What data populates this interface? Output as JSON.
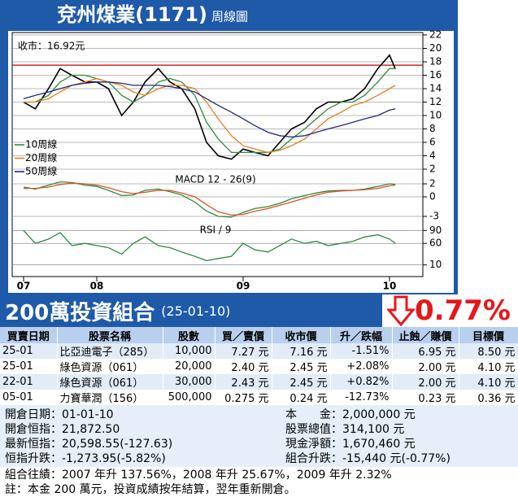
{
  "header": {
    "title": "兗州煤業(1171)",
    "subtitle": "周線圖"
  },
  "chart_data": [
    {
      "type": "line",
      "title": "收市：16.92元",
      "x": [
        2007.5,
        2007.58,
        2007.67,
        2007.75,
        2007.83,
        2007.92,
        2008.0,
        2008.08,
        2008.17,
        2008.25,
        2008.33,
        2008.42,
        2008.5,
        2008.58,
        2008.67,
        2008.75,
        2008.83,
        2008.92,
        2009.0,
        2009.08,
        2009.17,
        2009.25,
        2009.33,
        2009.42,
        2009.5,
        2009.58,
        2009.67,
        2009.75,
        2009.83,
        2009.92,
        2010.0,
        2010.04
      ],
      "xlim": [
        2007.45,
        2010.2
      ],
      "ylim": [
        2,
        22
      ],
      "yticks": [
        2,
        4,
        6,
        8,
        10,
        12,
        14,
        16,
        18,
        20,
        22
      ],
      "grid": true,
      "hline": 17.5,
      "hline_color": "#c00000",
      "series": [
        {
          "color": "#000000",
          "values": [
            12,
            11,
            14,
            17,
            16,
            15,
            15,
            14,
            10,
            12,
            15,
            17,
            15,
            14,
            11,
            6,
            4,
            3.5,
            5,
            4.5,
            4,
            6,
            8,
            9,
            11,
            12,
            12,
            12.5,
            14,
            17,
            19,
            16.92
          ]
        },
        {
          "name": "10周線",
          "color": "#2e8b3a",
          "values": [
            12,
            12,
            13,
            15,
            16,
            16,
            15.5,
            15,
            13,
            12,
            13,
            15,
            15.5,
            15,
            13,
            9,
            6.5,
            4.5,
            4.5,
            4.5,
            4.5,
            5,
            6.5,
            8,
            9.5,
            11,
            12,
            12,
            13,
            15,
            17,
            17
          ]
        },
        {
          "name": "20周線",
          "color": "#e87d1e",
          "values": [
            12,
            12,
            12.5,
            13.5,
            14.5,
            15,
            15.5,
            15,
            14.5,
            13.5,
            13,
            14,
            14.5,
            14.5,
            14,
            12,
            9.5,
            7,
            5.5,
            5,
            4.5,
            4.8,
            5.5,
            6.5,
            8,
            9.5,
            10.5,
            11.5,
            12,
            13,
            14,
            14.5
          ]
        },
        {
          "name": "50周線",
          "color": "#1f2a80",
          "values": [
            12.5,
            13,
            13.5,
            14,
            14.5,
            14.8,
            15,
            15,
            14.8,
            14.5,
            14.5,
            14.5,
            14.3,
            14,
            13.5,
            12.5,
            11.5,
            10.5,
            9.5,
            8.5,
            7.5,
            7,
            6.8,
            7,
            7.5,
            8,
            8.5,
            9,
            9.5,
            10,
            10.8,
            11
          ]
        }
      ]
    },
    {
      "type": "line",
      "title": "MACD 12 - 26(9)",
      "x": [
        2007.5,
        2007.58,
        2007.67,
        2007.75,
        2007.83,
        2007.92,
        2008.0,
        2008.08,
        2008.17,
        2008.25,
        2008.33,
        2008.42,
        2008.5,
        2008.58,
        2008.67,
        2008.75,
        2008.83,
        2008.92,
        2009.0,
        2009.08,
        2009.17,
        2009.25,
        2009.33,
        2009.42,
        2009.5,
        2009.58,
        2009.67,
        2009.75,
        2009.83,
        2009.92,
        2010.0,
        2010.04
      ],
      "xlim": [
        2007.45,
        2010.2
      ],
      "ylim": [
        -4,
        3
      ],
      "yticks": [
        2,
        0,
        -3
      ],
      "grid": true,
      "series": [
        {
          "color": "#2e8b3a",
          "values": [
            1.5,
            1.2,
            1.8,
            2.3,
            2.2,
            1.8,
            1.6,
            1.0,
            0.2,
            0.3,
            1.0,
            1.2,
            0.8,
            0.3,
            -0.8,
            -2.2,
            -3.0,
            -3.1,
            -2.4,
            -1.8,
            -1.5,
            -1.0,
            -0.3,
            0.2,
            0.6,
            0.9,
            1.0,
            1.0,
            1.2,
            1.6,
            2.0,
            1.9
          ]
        },
        {
          "color": "#e0502a",
          "values": [
            1.3,
            1.3,
            1.5,
            1.9,
            2.1,
            2.0,
            1.8,
            1.4,
            0.8,
            0.5,
            0.7,
            1.0,
            1.0,
            0.6,
            0.0,
            -1.2,
            -2.3,
            -2.8,
            -2.7,
            -2.2,
            -1.8,
            -1.3,
            -0.8,
            -0.2,
            0.3,
            0.7,
            0.9,
            1.0,
            1.1,
            1.3,
            1.7,
            1.8
          ]
        }
      ]
    },
    {
      "type": "line",
      "title": "RSI / 9",
      "x": [
        2007.5,
        2007.58,
        2007.67,
        2007.75,
        2007.83,
        2007.92,
        2008.0,
        2008.08,
        2008.17,
        2008.25,
        2008.33,
        2008.42,
        2008.5,
        2008.58,
        2008.67,
        2008.75,
        2008.83,
        2008.92,
        2009.0,
        2009.08,
        2009.17,
        2009.25,
        2009.33,
        2009.42,
        2009.5,
        2009.58,
        2009.67,
        2009.75,
        2009.83,
        2009.92,
        2010.0,
        2010.04
      ],
      "xlim": [
        2007.45,
        2010.2
      ],
      "ylim": [
        0,
        100
      ],
      "yticks": [
        90,
        60,
        10
      ],
      "grid": true,
      "xticks": [
        {
          "value": 2007.5,
          "label": "07"
        },
        {
          "value": 2008,
          "label": "08"
        },
        {
          "value": 2009,
          "label": "09"
        },
        {
          "value": 2010,
          "label": "10"
        }
      ],
      "series": [
        {
          "color": "#2e8b3a",
          "values": [
            90,
            60,
            70,
            85,
            55,
            60,
            55,
            50,
            35,
            60,
            75,
            55,
            50,
            40,
            30,
            20,
            25,
            30,
            60,
            45,
            40,
            55,
            70,
            60,
            65,
            55,
            60,
            65,
            75,
            80,
            70,
            60
          ]
        }
      ]
    }
  ],
  "portfolio": {
    "title": "200萬投資組合",
    "date": "(25-01-10)",
    "change": "0.77%",
    "table": {
      "header": [
        "買賣日期",
        "股票名稱",
        "股數",
        "買／賣價",
        "收市價",
        "升／跌幅",
        "止蝕／賺價",
        "目標價"
      ],
      "rows": [
        [
          "25-01",
          "比亞迪電子（285）",
          "10,000",
          "7.27 元",
          "7.16 元",
          "-1.51%",
          "6.95 元",
          "8.50 元"
        ],
        [
          "25-01",
          "綠色資源（061）",
          "20,000",
          "2.40 元",
          "2.45 元",
          "+2.08%",
          "2.00 元",
          "4.10 元"
        ],
        [
          "22-01",
          "綠色資源（061）",
          "30,000",
          "2.43 元",
          "2.45 元",
          "+0.82%",
          "2.00 元",
          "4.10 元"
        ],
        [
          "05-01",
          "力寶華潤（156）",
          "500,000",
          "0.275 元",
          "0.24 元",
          "-12.73%",
          "0.23 元",
          "0.36 元"
        ]
      ]
    },
    "summary": [
      [
        "開倉日期：01-01-10",
        "本　　金：2,000,000 元"
      ],
      [
        "開倉恒指：21,872.50",
        "股票總值：314,100 元"
      ],
      [
        "最新恒指：20,598.55(-127.63)",
        "現金淨額：1,670,460 元"
      ],
      [
        "恒指升跌：-1,273.95(-5.82%)",
        "組合升跌：-15,440 元(-0.77%)"
      ]
    ],
    "notes": [
      "組合往績：2007 年升 137.56%，2008 年升 25.67%，2009 年升 2.32%",
      "註：本金 200 萬元，投資成績按年結算，翌年重新開倉。"
    ]
  }
}
